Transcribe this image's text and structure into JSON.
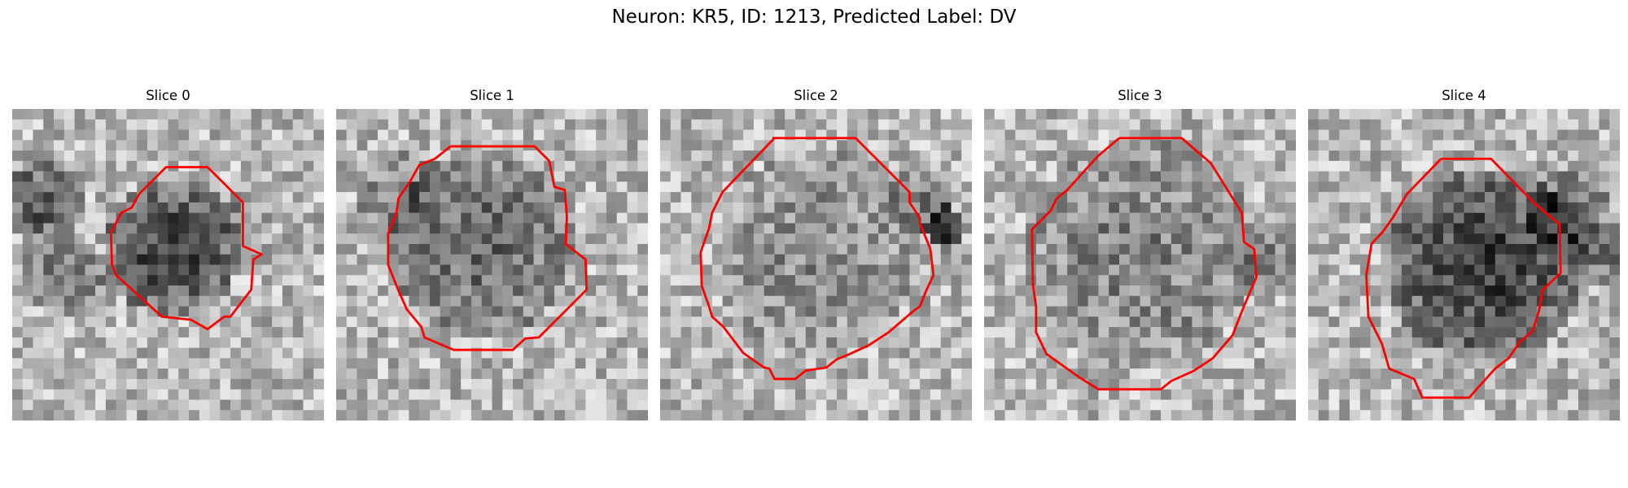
{
  "figure": {
    "title": "Neuron: KR5, ID: 1213, Predicted Label: DV"
  },
  "panels": [
    {
      "title": "Slice 0",
      "seed": 11,
      "contour_color": "#ff0000"
    },
    {
      "title": "Slice 1",
      "seed": 23,
      "contour_color": "#ff0000"
    },
    {
      "title": "Slice 2",
      "seed": 37,
      "contour_color": "#ff0000"
    },
    {
      "title": "Slice 3",
      "seed": 41,
      "contour_color": "#ff0000"
    },
    {
      "title": "Slice 4",
      "seed": 59,
      "contour_color": "#ff0000"
    }
  ]
}
